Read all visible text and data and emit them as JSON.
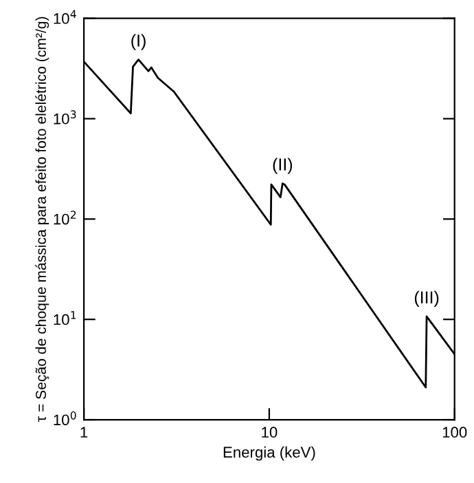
{
  "chart_data": {
    "type": "line",
    "xlabel": "Energia (keV)",
    "ylabel": "τ = Seção de choque mássica para efeito foto elelétrico (cm²/g)",
    "log": "xy",
    "xlim": [
      1,
      100
    ],
    "ylim": [
      1,
      10000
    ],
    "xticks": [
      1,
      10,
      100
    ],
    "yticks": [
      {
        "value": 1,
        "label": "10$^{0}$"
      },
      {
        "value": 10,
        "label": "10$^{1}$"
      },
      {
        "value": 100,
        "label": "10$^{2}$"
      },
      {
        "value": 1000,
        "label": "10$^{3}$"
      },
      {
        "value": 10000,
        "label": "10$^{4}$"
      }
    ],
    "grid": false,
    "legend": false,
    "marker": "none",
    "line_style": "solid",
    "series": [
      {
        "color": "#000000",
        "x": [
          1,
          1.79,
          1.84,
          1.97,
          2.23,
          2.31,
          2.51,
          3.06,
          10.2,
          10.26,
          11.5,
          11.8,
          12.1,
          69.9,
          70.7,
          100
        ],
        "values": [
          3700,
          1130,
          3300,
          3880,
          2980,
          3240,
          2550,
          1860,
          88,
          221,
          165,
          226,
          221,
          2.1,
          10.7,
          4.5
        ]
      }
    ],
    "annotations": [
      {
        "text": "(I)",
        "x": 1.97,
        "y": 3880
      },
      {
        "text": "(II)",
        "x": 11.8,
        "y": 226
      },
      {
        "text": "(III)",
        "x": 70.7,
        "y": 10.7
      }
    ]
  }
}
